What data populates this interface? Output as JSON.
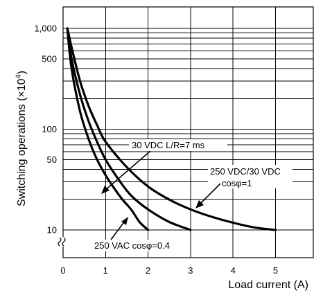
{
  "chart_data": {
    "type": "line",
    "title": "",
    "xlabel": "Load current (A)",
    "ylabel": "Switching operations (×10⁴)",
    "ylabel_main": "Switching operations (",
    "ylabel_times": "×10",
    "ylabel_exp": "4",
    "ylabel_close": ")",
    "xlim": [
      0,
      6
    ],
    "ylim": [
      5,
      1300
    ],
    "y_scale": "log",
    "x_ticks": [
      {
        "value": 0,
        "label": "0"
      },
      {
        "value": 1,
        "label": "1"
      },
      {
        "value": 2,
        "label": "2"
      },
      {
        "value": 3,
        "label": "3"
      },
      {
        "value": 4,
        "label": "4"
      },
      {
        "value": 5,
        "label": "5"
      }
    ],
    "y_ticks": [
      {
        "value": 10,
        "label": "10"
      },
      {
        "value": 50,
        "label": "50"
      },
      {
        "value": 100,
        "label": "100"
      },
      {
        "value": 500,
        "label": "500"
      },
      {
        "value": 1000,
        "label": "1,000"
      }
    ],
    "y_grid": [
      10,
      20,
      30,
      40,
      50,
      60,
      70,
      80,
      90,
      100,
      200,
      300,
      400,
      500,
      600,
      700,
      800,
      900,
      1000
    ],
    "x_grid": [
      1,
      2,
      3,
      4,
      5
    ],
    "grid": true,
    "legend": "none",
    "series": [
      {
        "points": [
          [
            0.1,
            1000
          ],
          [
            0.2,
            400
          ],
          [
            0.4,
            150
          ],
          [
            0.6,
            80
          ],
          [
            0.8,
            50
          ],
          [
            1.0,
            35
          ],
          [
            1.2,
            26
          ],
          [
            1.4,
            20
          ],
          [
            1.6,
            16
          ],
          [
            1.8,
            12
          ],
          [
            2.0,
            10
          ]
        ]
      },
      {
        "points": [
          [
            0.1,
            1000
          ],
          [
            0.2,
            500
          ],
          [
            0.4,
            220
          ],
          [
            0.6,
            120
          ],
          [
            0.8,
            75
          ],
          [
            1.0,
            50
          ],
          [
            1.3,
            32
          ],
          [
            1.6,
            22
          ],
          [
            2.0,
            16
          ],
          [
            2.5,
            12
          ],
          [
            3.0,
            10
          ]
        ]
      },
      {
        "points": [
          [
            0.1,
            1000
          ],
          [
            0.2,
            650
          ],
          [
            0.4,
            300
          ],
          [
            0.6,
            170
          ],
          [
            0.8,
            110
          ],
          [
            1.0,
            75
          ],
          [
            1.5,
            42
          ],
          [
            2.0,
            27
          ],
          [
            2.5,
            20
          ],
          [
            3.0,
            16
          ],
          [
            3.5,
            13.5
          ],
          [
            4.0,
            11.8
          ],
          [
            4.5,
            10.6
          ],
          [
            5.0,
            10
          ]
        ]
      }
    ],
    "annotations": [
      {
        "text": "30 VDC L/R=7 ms"
      },
      {
        "text": "250 VDC/30 VDC"
      },
      {
        "text": "cosφ=1"
      },
      {
        "text": "250 VAC cosφ=0.4"
      }
    ]
  }
}
